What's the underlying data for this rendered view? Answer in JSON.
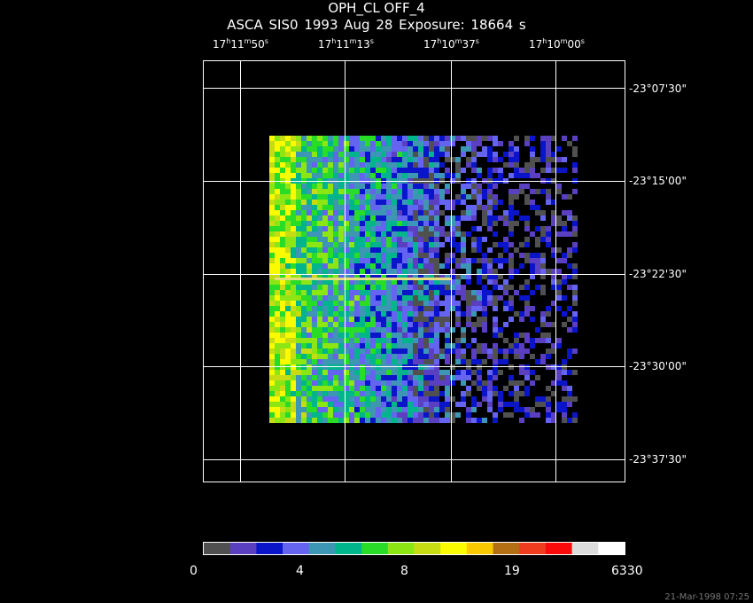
{
  "title": "OPH_CL OFF_4",
  "subtitle": "ASCA SIS0    1993 Aug 28    Exposure: 18664 s",
  "ra_labels": [
    {
      "h": "17",
      "m": "11",
      "s": "50"
    },
    {
      "h": "17",
      "m": "11",
      "s": "13"
    },
    {
      "h": "17",
      "m": "10",
      "s": "37"
    },
    {
      "h": "17",
      "m": "10",
      "s": "00"
    }
  ],
  "dec_labels": [
    "-23°07'30\"",
    "-23°15'00\"",
    "-23°22'30\"",
    "-23°30'00\"",
    "-23°37'30\""
  ],
  "colorbar": {
    "colors": [
      "#505050",
      "#5a3fc0",
      "#0a14c8",
      "#6464f0",
      "#3c96b4",
      "#00b48c",
      "#28dc28",
      "#8ce614",
      "#c8dc14",
      "#fafa00",
      "#fac800",
      "#b46e14",
      "#f03c1e",
      "#fa0a0a",
      "#dcdcdc",
      "#ffffff"
    ],
    "labels": [
      "0",
      "4",
      "8",
      "19",
      "6330"
    ]
  },
  "timestamp": "21-Mar-1998 07:25"
}
